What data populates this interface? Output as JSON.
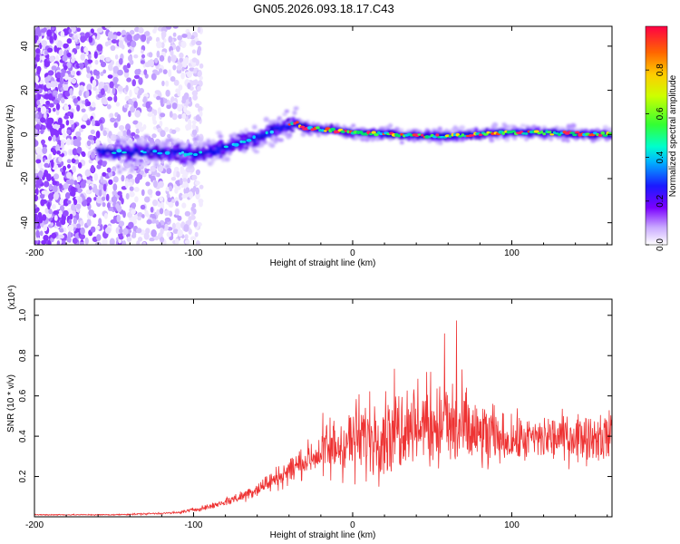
{
  "title": "GN05.2026.093.18.17.C43",
  "chart_data": [
    {
      "type": "heatmap",
      "name": "spectrogram",
      "title": "GN05.2026.093.18.17.C43",
      "xlabel": "Height of straight line (km)",
      "ylabel": "Frequency (Hz)",
      "xlim": [
        -200,
        163
      ],
      "ylim": [
        -50,
        49
      ],
      "xticks": [
        "-200",
        "-100",
        "0",
        "100"
      ],
      "yticks": [
        "-40",
        "-20",
        "0",
        "20",
        "40"
      ],
      "colorbar": {
        "label": "Normalized spectral amplitude",
        "range": [
          0,
          1
        ],
        "ticks": [
          "0.0",
          "0.2",
          "0.4",
          "0.6",
          "0.8"
        ]
      },
      "ridge_frequency_hz": {
        "x": [
          -200,
          -150,
          -120,
          -100,
          -80,
          -60,
          -45,
          -35,
          -30,
          0,
          50,
          100,
          163
        ],
        "y": [
          -8,
          -8,
          -8,
          -9,
          -6,
          -1,
          3,
          5,
          3,
          1,
          -1,
          1,
          0
        ]
      }
    },
    {
      "type": "line",
      "name": "snr",
      "xlabel": "Height of straight line (km)",
      "ylabel": "SNR (10 * v/v)",
      "yscale_label": "(x10⁴)",
      "xlim": [
        -200,
        163
      ],
      "ylim": [
        0,
        1.08
      ],
      "xticks": [
        "-200",
        "-100",
        "0",
        "100"
      ],
      "yticks": [
        "0.2",
        "0.4",
        "0.6",
        "0.8",
        "1.0"
      ],
      "color": "#ee3333",
      "envelope": {
        "x": [
          -200,
          -150,
          -110,
          -90,
          -70,
          -50,
          -30,
          -10,
          0,
          20,
          30,
          40,
          50,
          60,
          80,
          100,
          120,
          140,
          163
        ],
        "y": [
          0.01,
          0.01,
          0.02,
          0.05,
          0.1,
          0.18,
          0.28,
          0.35,
          0.38,
          0.42,
          0.45,
          0.47,
          0.46,
          0.45,
          0.4,
          0.38,
          0.39,
          0.4,
          0.4
        ]
      }
    }
  ]
}
